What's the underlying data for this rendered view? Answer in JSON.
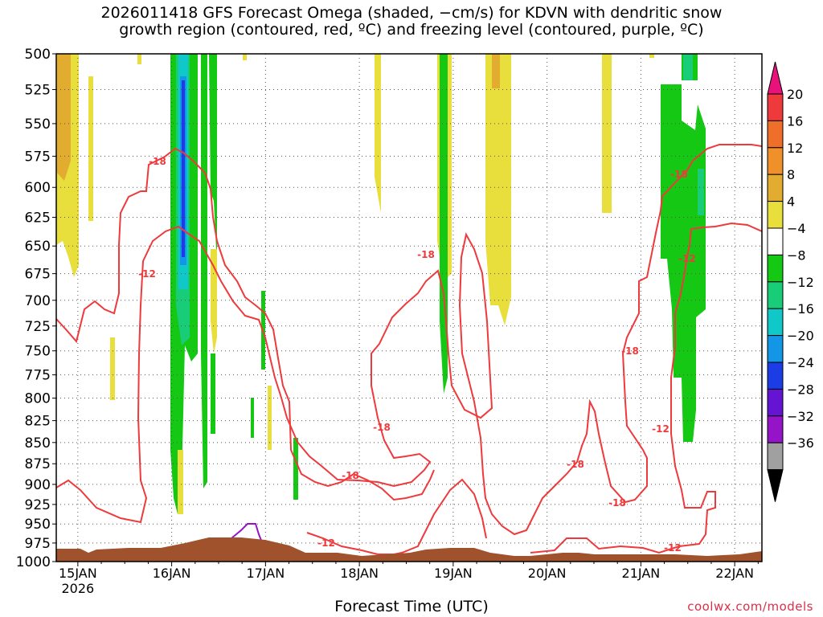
{
  "chart_data": {
    "type": "heatmap",
    "title_line1": "2026011418 GFS Forecast Omega (shaded, −cm/s) for KDVN with dendritic snow",
    "title_line2": "growth region (contoured, red, ºC) and freezing level (contoured, purple, ºC)",
    "xlabel": "Forecast Time (UTC)",
    "credit": "coolwx.com/models",
    "x_ticks": [
      {
        "label": "15JAN",
        "sub": "2026",
        "day": 15
      },
      {
        "label": "16JAN",
        "sub": "",
        "day": 16
      },
      {
        "label": "17JAN",
        "sub": "",
        "day": 17
      },
      {
        "label": "18JAN",
        "sub": "",
        "day": 18
      },
      {
        "label": "19JAN",
        "sub": "",
        "day": 19
      },
      {
        "label": "20JAN",
        "sub": "",
        "day": 20
      },
      {
        "label": "21JAN",
        "sub": "",
        "day": 21
      },
      {
        "label": "22JAN",
        "sub": "",
        "day": 22
      }
    ],
    "x_range_days": [
      14.77,
      22.29
    ],
    "y_ticks": [
      "500",
      "525",
      "550",
      "575",
      "600",
      "625",
      "650",
      "675",
      "700",
      "725",
      "750",
      "775",
      "800",
      "825",
      "850",
      "875",
      "900",
      "925",
      "950",
      "975",
      "1000"
    ],
    "y_range_hpa": [
      500,
      1000
    ],
    "y_scale": "log-pressure",
    "grid": true,
    "colorbar": {
      "labels": [
        "20",
        "16",
        "12",
        "8",
        "4",
        "−4",
        "−8",
        "−12",
        "−16",
        "−20",
        "−24",
        "−28",
        "−32",
        "−36"
      ],
      "colors": [
        "#e8127a",
        "#ee3a3c",
        "#ee6e2a",
        "#f0902a",
        "#e2ac30",
        "#e8de3c",
        "#ffffff",
        "#14c814",
        "#18cc78",
        "#10c8c8",
        "#1496e6",
        "#1c3ce6",
        "#6414d2",
        "#9614c8",
        "#a0a0a0",
        "#000000"
      ]
    },
    "contour_labels": [
      "-18",
      "-12",
      "-18",
      "-12",
      "-18",
      "-18",
      "-18",
      "-18",
      "-18",
      "-12",
      "-12",
      "-18",
      "-12"
    ],
    "colors": {
      "contour": "#ee3a3c",
      "freezing": "#9614c8",
      "ground": "#a0522d"
    }
  }
}
